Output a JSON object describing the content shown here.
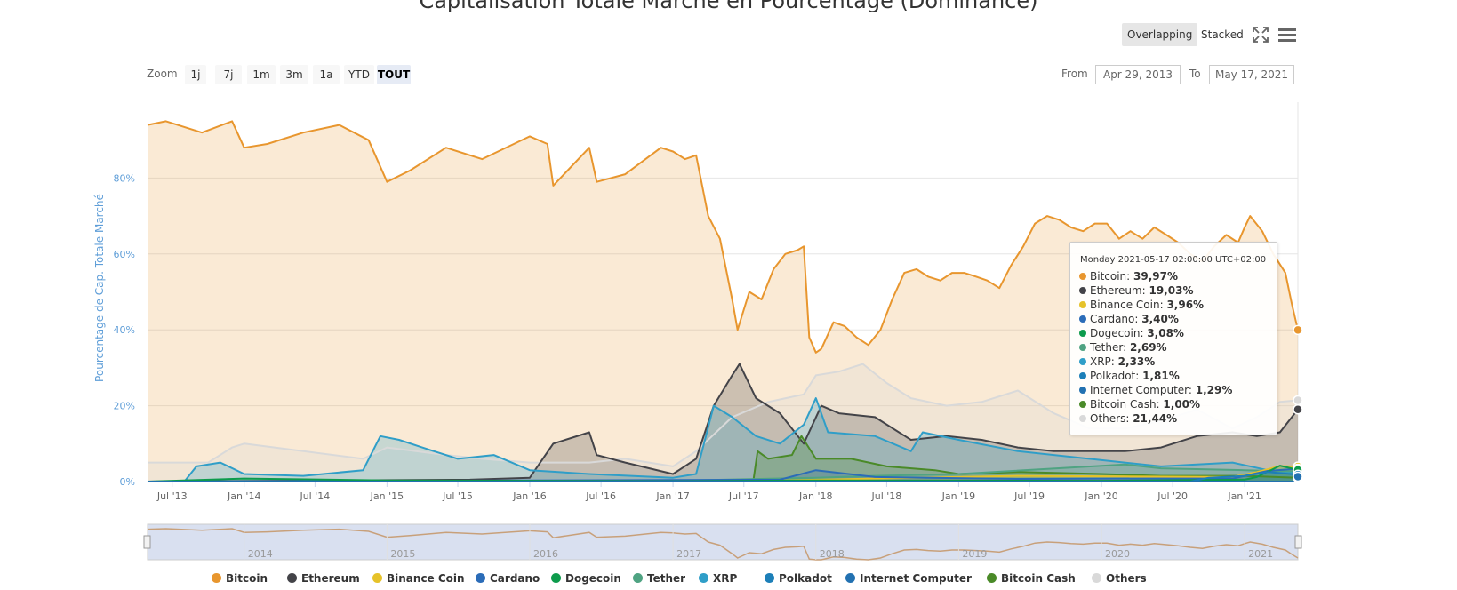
{
  "chart_data": {
    "type": "area",
    "title": "Capitalisation Totale Marché en Pourcentage (Dominance)",
    "ylabel": "Pourcentage de Cap. Totale Marché",
    "xlabel": "",
    "ylim": [
      0,
      100
    ],
    "y_ticks": [
      "0%",
      "20%",
      "40%",
      "60%",
      "80%"
    ],
    "y_tick_values": [
      0,
      20,
      40,
      60,
      80
    ],
    "x_ticks": [
      "Jul '13",
      "Jan '14",
      "Jul '14",
      "Jan '15",
      "Jul '15",
      "Jan '16",
      "Jul '16",
      "Jan '17",
      "Jul '17",
      "Jan '18",
      "Jul '18",
      "Jan '19",
      "Jul '19",
      "Jan '20",
      "Jul '20",
      "Jan '21"
    ],
    "x_tick_dates": [
      "2013-07-01",
      "2014-01-01",
      "2014-07-01",
      "2015-01-01",
      "2015-07-01",
      "2016-01-01",
      "2016-07-01",
      "2017-01-01",
      "2017-07-01",
      "2018-01-01",
      "2018-07-01",
      "2019-01-01",
      "2019-07-01",
      "2020-01-01",
      "2020-07-01",
      "2021-01-01"
    ],
    "x_range": [
      "2013-04-29",
      "2021-05-17"
    ],
    "grid": true,
    "legend_position": "bottom",
    "series": [
      {
        "name": "Bitcoin",
        "color": "#e8962e",
        "x": [
          "2013-04-29",
          "2013-06-15",
          "2013-09-15",
          "2013-12-01",
          "2014-01-01",
          "2014-03-01",
          "2014-06-01",
          "2014-09-01",
          "2014-11-15",
          "2015-01-01",
          "2015-03-01",
          "2015-06-01",
          "2015-09-01",
          "2016-01-01",
          "2016-02-15",
          "2016-03-01",
          "2016-06-01",
          "2016-06-20",
          "2016-09-01",
          "2016-12-01",
          "2017-01-01",
          "2017-02-01",
          "2017-03-01",
          "2017-04-01",
          "2017-05-01",
          "2017-06-01",
          "2017-06-15",
          "2017-07-15",
          "2017-08-15",
          "2017-09-15",
          "2017-10-15",
          "2017-11-15",
          "2017-12-01",
          "2017-12-15",
          "2018-01-01",
          "2018-01-15",
          "2018-02-15",
          "2018-03-15",
          "2018-04-15",
          "2018-05-15",
          "2018-06-15",
          "2018-07-15",
          "2018-08-15",
          "2018-09-15",
          "2018-10-15",
          "2018-11-15",
          "2018-12-15",
          "2019-01-15",
          "2019-02-15",
          "2019-03-15",
          "2019-04-15",
          "2019-05-15",
          "2019-06-15",
          "2019-07-15",
          "2019-08-15",
          "2019-09-15",
          "2019-10-15",
          "2019-11-15",
          "2019-12-15",
          "2020-01-15",
          "2020-02-15",
          "2020-03-15",
          "2020-04-15",
          "2020-05-15",
          "2020-06-15",
          "2020-07-15",
          "2020-08-15",
          "2020-09-15",
          "2020-10-15",
          "2020-11-15",
          "2020-12-15",
          "2021-01-01",
          "2021-01-15",
          "2021-02-15",
          "2021-03-15",
          "2021-04-15",
          "2021-05-01",
          "2021-05-17"
        ],
        "y": [
          94,
          95,
          92,
          95,
          88,
          89,
          92,
          94,
          90,
          79,
          82,
          88,
          85,
          91,
          89,
          78,
          88,
          79,
          81,
          88,
          87,
          85,
          86,
          70,
          64,
          48,
          40,
          50,
          48,
          56,
          60,
          61,
          62,
          38,
          34,
          35,
          42,
          41,
          38,
          36,
          40,
          48,
          55,
          56,
          54,
          53,
          55,
          55,
          54,
          53,
          51,
          57,
          62,
          68,
          70,
          69,
          67,
          66,
          68,
          68,
          64,
          66,
          64,
          67,
          65,
          63,
          60,
          58,
          62,
          65,
          63,
          67,
          70,
          66,
          60,
          55,
          47,
          39.97
        ]
      },
      {
        "name": "Ethereum",
        "color": "#434348",
        "x": [
          "2013-04-29",
          "2015-08-01",
          "2016-01-01",
          "2016-03-01",
          "2016-06-01",
          "2016-06-20",
          "2016-09-01",
          "2017-01-01",
          "2017-03-01",
          "2017-04-15",
          "2017-06-01",
          "2017-06-20",
          "2017-08-01",
          "2017-10-01",
          "2017-12-01",
          "2018-01-15",
          "2018-03-01",
          "2018-06-01",
          "2018-09-01",
          "2018-12-01",
          "2019-03-01",
          "2019-06-01",
          "2019-09-01",
          "2019-12-01",
          "2020-03-01",
          "2020-06-01",
          "2020-09-01",
          "2020-12-01",
          "2021-02-01",
          "2021-04-01",
          "2021-05-17"
        ],
        "y": [
          0,
          0.5,
          1,
          10,
          13,
          7,
          5,
          2,
          6,
          20,
          28,
          31,
          22,
          18,
          10,
          20,
          18,
          17,
          11,
          12,
          11,
          9,
          8,
          8,
          8,
          9,
          12,
          13,
          12,
          13,
          19.03
        ]
      },
      {
        "name": "Binance Coin",
        "color": "#e6c229",
        "x": [
          "2013-04-29",
          "2017-07-01",
          "2018-01-01",
          "2019-06-01",
          "2020-12-01",
          "2021-02-01",
          "2021-04-01",
          "2021-05-17"
        ],
        "y": [
          0,
          0.1,
          0.5,
          1.5,
          1.2,
          2.5,
          4.1,
          3.96
        ]
      },
      {
        "name": "Cardano",
        "color": "#2b6cb8",
        "x": [
          "2013-04-29",
          "2017-10-01",
          "2018-01-01",
          "2018-06-01",
          "2019-06-01",
          "2020-06-01",
          "2020-12-01",
          "2021-03-01",
          "2021-05-17"
        ],
        "y": [
          0,
          0.5,
          3,
          1.2,
          0.7,
          0.8,
          0.8,
          2.8,
          3.4
        ]
      },
      {
        "name": "Dogecoin",
        "color": "#0d9b4c",
        "x": [
          "2013-04-29",
          "2014-01-01",
          "2015-01-01",
          "2017-01-01",
          "2018-01-01",
          "2020-01-01",
          "2021-01-01",
          "2021-02-01",
          "2021-04-01",
          "2021-05-17"
        ],
        "y": [
          0,
          0.8,
          0.3,
          0.1,
          0.3,
          0.2,
          0.5,
          1.2,
          4.2,
          3.08
        ]
      },
      {
        "name": "Tether",
        "color": "#4fa382",
        "x": [
          "2013-04-29",
          "2015-03-01",
          "2017-01-01",
          "2018-01-01",
          "2018-06-01",
          "2019-01-01",
          "2020-03-01",
          "2020-06-01",
          "2021-01-01",
          "2021-05-17"
        ],
        "y": [
          0,
          0.1,
          0.2,
          1,
          1.5,
          2,
          4.5,
          3.5,
          3,
          2.69
        ]
      },
      {
        "name": "XRP",
        "color": "#2f9ec8",
        "x": [
          "2013-04-29",
          "2013-08-01",
          "2013-09-01",
          "2013-11-01",
          "2014-01-01",
          "2014-06-01",
          "2014-11-01",
          "2014-12-15",
          "2015-02-01",
          "2015-04-01",
          "2015-07-01",
          "2015-10-01",
          "2016-01-01",
          "2016-06-01",
          "2017-01-01",
          "2017-03-01",
          "2017-04-15",
          "2017-06-01",
          "2017-08-01",
          "2017-10-01",
          "2017-12-01",
          "2018-01-01",
          "2018-02-01",
          "2018-06-01",
          "2018-09-01",
          "2018-10-01",
          "2019-01-01",
          "2019-06-01",
          "2019-12-01",
          "2020-06-01",
          "2020-12-01",
          "2021-03-01",
          "2021-05-17"
        ],
        "y": [
          0,
          0,
          4,
          5,
          2,
          1.5,
          3,
          12,
          11,
          9,
          6,
          7,
          3,
          2,
          1,
          2,
          20,
          17,
          12,
          10,
          15,
          22,
          13,
          12,
          8,
          13,
          11,
          8,
          6,
          4,
          5,
          3,
          2.33
        ]
      },
      {
        "name": "Polkadot",
        "color": "#1c7fb8",
        "x": [
          "2013-04-29",
          "2020-08-15",
          "2020-10-01",
          "2021-01-01",
          "2021-03-01",
          "2021-05-17"
        ],
        "y": [
          0,
          0,
          1,
          1.5,
          2.5,
          1.81
        ]
      },
      {
        "name": "Internet Computer",
        "color": "#2271b1",
        "x": [
          "2013-04-29",
          "2021-05-09",
          "2021-05-12",
          "2021-05-17"
        ],
        "y": [
          0,
          0,
          2,
          1.29
        ]
      },
      {
        "name": "Bitcoin Cash",
        "color": "#4a8a28",
        "x": [
          "2013-04-29",
          "2017-07-25",
          "2017-08-05",
          "2017-09-01",
          "2017-11-01",
          "2017-11-25",
          "2018-01-01",
          "2018-04-01",
          "2018-07-01",
          "2018-11-01",
          "2019-01-01",
          "2019-06-01",
          "2020-01-01",
          "2020-06-01",
          "2021-01-01",
          "2021-05-17"
        ],
        "y": [
          0,
          0,
          8,
          6,
          7,
          12,
          6,
          6,
          4,
          3,
          2,
          2.5,
          2,
          1.5,
          1.5,
          1.0
        ]
      },
      {
        "name": "Others",
        "color": "#d9d9d9",
        "x": [
          "2013-04-29",
          "2013-07-01",
          "2013-10-01",
          "2013-12-01",
          "2014-01-01",
          "2014-06-01",
          "2014-11-01",
          "2015-01-01",
          "2015-06-01",
          "2015-09-01",
          "2016-01-01",
          "2016-06-01",
          "2016-09-01",
          "2017-01-01",
          "2017-03-01",
          "2017-06-01",
          "2017-09-01",
          "2017-12-01",
          "2018-01-01",
          "2018-03-01",
          "2018-05-01",
          "2018-07-01",
          "2018-09-01",
          "2018-12-01",
          "2019-03-01",
          "2019-06-01",
          "2019-09-01",
          "2019-12-01",
          "2020-03-01",
          "2020-06-01",
          "2020-09-01",
          "2020-12-01",
          "2021-02-01",
          "2021-04-01",
          "2021-05-17"
        ],
        "y": [
          5,
          5,
          5,
          9,
          10,
          8,
          6,
          9,
          7,
          6,
          5,
          5,
          6,
          4,
          8,
          17,
          21,
          23,
          28,
          29,
          31,
          26,
          22,
          20,
          21,
          24,
          18,
          14,
          14,
          16,
          19,
          14,
          17,
          21,
          21.44
        ]
      }
    ],
    "navigator_labels": [
      "2014",
      "2015",
      "2016",
      "2017",
      "2018",
      "2019",
      "2020",
      "2021"
    ],
    "navigator_dates": [
      "2014-01-01",
      "2015-01-01",
      "2016-01-01",
      "2017-01-01",
      "2018-01-01",
      "2019-01-01",
      "2020-01-01",
      "2021-01-01"
    ]
  },
  "toolbar": {
    "modes": [
      "Overlapping",
      "Stacked"
    ],
    "active_mode": "Overlapping",
    "zoom_label": "Zoom",
    "zoom_buttons": [
      "1j",
      "7j",
      "1m",
      "3m",
      "1a",
      "YTD",
      "TOUT"
    ],
    "selected_zoom": "TOUT",
    "from_label": "From",
    "from_value": "Apr 29, 2013",
    "to_label": "To",
    "to_value": "May 17, 2021",
    "fullscreen_icon": "fullscreen-icon",
    "menu_icon": "hamburger-menu-icon"
  },
  "tooltip": {
    "header": "Monday 2021-05-17 02:00:00 UTC+02:00",
    "rows": [
      {
        "name": "Bitcoin",
        "value": "39,97%",
        "color": "#e8962e"
      },
      {
        "name": "Ethereum",
        "value": "19,03%",
        "color": "#434348"
      },
      {
        "name": "Binance Coin",
        "value": "3,96%",
        "color": "#e6c229"
      },
      {
        "name": "Cardano",
        "value": "3,40%",
        "color": "#2b6cb8"
      },
      {
        "name": "Dogecoin",
        "value": "3,08%",
        "color": "#0d9b4c"
      },
      {
        "name": "Tether",
        "value": "2,69%",
        "color": "#4fa382"
      },
      {
        "name": "XRP",
        "value": "2,33%",
        "color": "#2f9ec8"
      },
      {
        "name": "Polkadot",
        "value": "1,81%",
        "color": "#1c7fb8"
      },
      {
        "name": "Internet Computer",
        "value": "1,29%",
        "color": "#2271b1"
      },
      {
        "name": "Bitcoin Cash",
        "value": "1,00%",
        "color": "#4a8a28"
      },
      {
        "name": "Others",
        "value": "21,44%",
        "color": "#d9d9d9"
      }
    ]
  }
}
